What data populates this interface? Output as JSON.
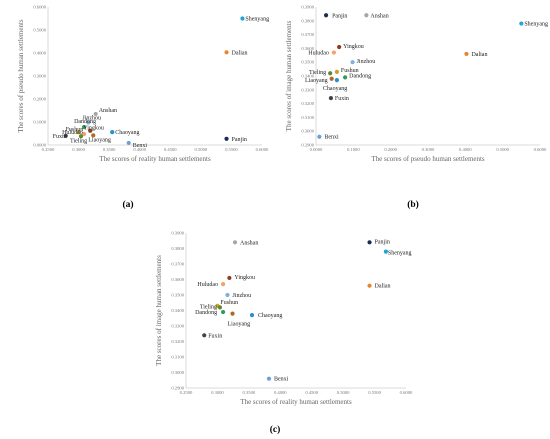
{
  "figure": {
    "captions": [
      "(a)",
      "(b)",
      "(c)"
    ]
  },
  "chart_data": [
    {
      "type": "scatter",
      "caption": "(a)",
      "xlabel": "The scores of reality human settlements",
      "ylabel": "The scores of pseudo human settlements",
      "xlim": [
        0.25,
        0.6
      ],
      "ylim": [
        0,
        0.6
      ],
      "x_ticks": [
        "0.2500",
        "0.3000",
        "0.3500",
        "0.4000",
        "0.4500",
        "0.5000",
        "0.5500",
        "0.6000"
      ],
      "y_ticks": [
        "0.0000",
        "0.1000",
        "0.2000",
        "0.3000",
        "0.4000",
        "0.5000",
        "0.6000"
      ],
      "grid": false,
      "points": [
        {
          "label": "Shenyang",
          "x": 0.568,
          "y": 0.55,
          "color": "#1fa5d8"
        },
        {
          "label": "Dalian",
          "x": 0.542,
          "y": 0.403,
          "color": "#e8862a"
        },
        {
          "label": "Panjin",
          "x": 0.542,
          "y": 0.027,
          "color": "#1a2a57"
        },
        {
          "label": "Anshan",
          "x": 0.328,
          "y": 0.135,
          "color": "#a6a6a6"
        },
        {
          "label": "Jinzhou",
          "x": 0.316,
          "y": 0.098,
          "color": "#7cb2e0"
        },
        {
          "label": "Dandong",
          "x": 0.309,
          "y": 0.078,
          "color": "#2e9b5b"
        },
        {
          "label": "Yingkou",
          "x": 0.319,
          "y": 0.062,
          "color": "#8c3e1e"
        },
        {
          "label": "Chaoyang",
          "x": 0.355,
          "y": 0.056,
          "color": "#2a8fd0"
        },
        {
          "label": "Fushun",
          "x": 0.3,
          "y": 0.056,
          "color": "#c9a227"
        },
        {
          "label": "Huludao",
          "x": 0.309,
          "y": 0.048,
          "color": "#f0a36b"
        },
        {
          "label": "Fuxin",
          "x": 0.279,
          "y": 0.04,
          "color": "#444444"
        },
        {
          "label": "Tieling",
          "x": 0.304,
          "y": 0.038,
          "color": "#5e8a2e"
        },
        {
          "label": "Liaoyang",
          "x": 0.324,
          "y": 0.042,
          "color": "#b06a26"
        },
        {
          "label": "Benxi",
          "x": 0.382,
          "y": 0.009,
          "color": "#6f9fd8"
        }
      ]
    },
    {
      "type": "scatter",
      "caption": "(b)",
      "xlabel": "The scores of pseudo human settlements",
      "ylabel": "The scores of image human settlements",
      "xlim": [
        0,
        0.6
      ],
      "ylim": [
        0.29,
        0.39
      ],
      "x_ticks": [
        "0.0000",
        "0.1000",
        "0.2000",
        "0.3000",
        "0.4000",
        "0.5000",
        "0.6000"
      ],
      "y_ticks": [
        "0.2900",
        "0.3000",
        "0.3100",
        "0.3200",
        "0.3300",
        "0.3400",
        "0.3500",
        "0.3600",
        "0.3700",
        "0.3800",
        "0.3900"
      ],
      "grid": false,
      "points": [
        {
          "label": "Panjin",
          "x": 0.027,
          "y": 0.384,
          "color": "#1a2a57"
        },
        {
          "label": "Anshan",
          "x": 0.135,
          "y": 0.384,
          "color": "#a6a6a6"
        },
        {
          "label": "Shenyang",
          "x": 0.55,
          "y": 0.378,
          "color": "#1fa5d8"
        },
        {
          "label": "Yingkou",
          "x": 0.062,
          "y": 0.361,
          "color": "#8c3e1e"
        },
        {
          "label": "Huludao",
          "x": 0.048,
          "y": 0.357,
          "color": "#f0a36b"
        },
        {
          "label": "Dalian",
          "x": 0.403,
          "y": 0.356,
          "color": "#e8862a"
        },
        {
          "label": "Jinzhou",
          "x": 0.098,
          "y": 0.35,
          "color": "#7cb2e0"
        },
        {
          "label": "Tieling",
          "x": 0.038,
          "y": 0.342,
          "color": "#5e8a2e"
        },
        {
          "label": "Fushun",
          "x": 0.056,
          "y": 0.343,
          "color": "#c9a227"
        },
        {
          "label": "Dandong",
          "x": 0.078,
          "y": 0.339,
          "color": "#2e9b5b"
        },
        {
          "label": "Liaoyang",
          "x": 0.042,
          "y": 0.338,
          "color": "#b06a26"
        },
        {
          "label": "Chaoyang",
          "x": 0.056,
          "y": 0.337,
          "color": "#2a8fd0"
        },
        {
          "label": "Fuxin",
          "x": 0.04,
          "y": 0.324,
          "color": "#444444"
        },
        {
          "label": "Benxi",
          "x": 0.009,
          "y": 0.296,
          "color": "#6f9fd8"
        }
      ]
    },
    {
      "type": "scatter",
      "caption": "(c)",
      "xlabel": "The scores of reality human settlements",
      "ylabel": "The scores of image human settlements",
      "xlim": [
        0.25,
        0.6
      ],
      "ylim": [
        0.29,
        0.39
      ],
      "x_ticks": [
        "0.2500",
        "0.3000",
        "0.3500",
        "0.4000",
        "0.4500",
        "0.5000",
        "0.5500",
        "0.6000"
      ],
      "y_ticks": [
        "0.2900",
        "0.3000",
        "0.3100",
        "0.3200",
        "0.3300",
        "0.3400",
        "0.3500",
        "0.3600",
        "0.3700",
        "0.3800",
        "0.3900"
      ],
      "grid": false,
      "points": [
        {
          "label": "Anshan",
          "x": 0.328,
          "y": 0.384,
          "color": "#a6a6a6"
        },
        {
          "label": "Panjin",
          "x": 0.542,
          "y": 0.384,
          "color": "#1a2a57"
        },
        {
          "label": "Shenyang",
          "x": 0.568,
          "y": 0.378,
          "color": "#1fa5d8"
        },
        {
          "label": "Yingkou",
          "x": 0.319,
          "y": 0.361,
          "color": "#8c3e1e"
        },
        {
          "label": "Huludao",
          "x": 0.309,
          "y": 0.357,
          "color": "#f0a36b"
        },
        {
          "label": "Dalian",
          "x": 0.542,
          "y": 0.356,
          "color": "#e8862a"
        },
        {
          "label": "Jinzhou",
          "x": 0.316,
          "y": 0.35,
          "color": "#7cb2e0"
        },
        {
          "label": "Fushun",
          "x": 0.3,
          "y": 0.343,
          "color": "#c9a227"
        },
        {
          "label": "Tieling",
          "x": 0.304,
          "y": 0.342,
          "color": "#5e8a2e"
        },
        {
          "label": "Dandong",
          "x": 0.309,
          "y": 0.339,
          "color": "#2e9b5b"
        },
        {
          "label": "Chaoyang",
          "x": 0.355,
          "y": 0.337,
          "color": "#2a8fd0"
        },
        {
          "label": "Liaoyang",
          "x": 0.324,
          "y": 0.338,
          "color": "#b06a26"
        },
        {
          "label": "Fuxin",
          "x": 0.279,
          "y": 0.324,
          "color": "#444444"
        },
        {
          "label": "Benxi",
          "x": 0.382,
          "y": 0.296,
          "color": "#6f9fd8"
        }
      ]
    }
  ]
}
